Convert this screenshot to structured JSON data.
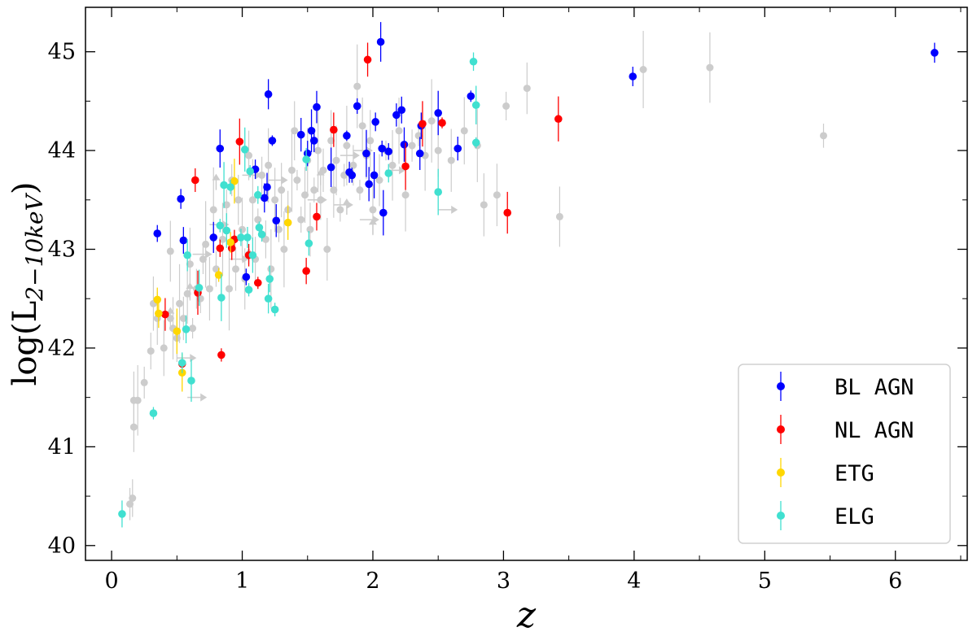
{
  "chart_data": {
    "type": "scatter",
    "xlabel": "z",
    "ylabel": "log(L",
    "ylabel_sub": "2−10keV",
    "ylabel_close": ")",
    "xlim": [
      -0.2,
      6.55
    ],
    "ylim": [
      39.85,
      45.45
    ],
    "x_ticks": [
      0,
      1,
      2,
      3,
      4,
      5,
      6
    ],
    "y_ticks": [
      40,
      41,
      42,
      43,
      44,
      45
    ],
    "grid": false,
    "legend_position": "lower-right",
    "background_points": {
      "color": "#cccccc",
      "points": [
        [
          0.14,
          40.42
        ],
        [
          0.16,
          40.48
        ],
        [
          0.17,
          41.2
        ],
        [
          0.17,
          41.47
        ],
        [
          0.2,
          41.47
        ],
        [
          0.25,
          41.65
        ],
        [
          0.3,
          41.97
        ],
        [
          0.32,
          42.45
        ],
        [
          0.35,
          42.3
        ],
        [
          0.4,
          42.0
        ],
        [
          0.45,
          42.3
        ],
        [
          0.45,
          42.98
        ],
        [
          0.47,
          42.2
        ],
        [
          0.5,
          42.1
        ],
        [
          0.52,
          42.45
        ],
        [
          0.55,
          42.3
        ],
        [
          0.58,
          42.55
        ],
        [
          0.6,
          42.85
        ],
        [
          0.62,
          42.2
        ],
        [
          0.65,
          42.6
        ],
        [
          0.68,
          42.5
        ],
        [
          0.7,
          42.9
        ],
        [
          0.72,
          43.05
        ],
        [
          0.75,
          42.6
        ],
        [
          0.78,
          43.4
        ],
        [
          0.8,
          42.8
        ],
        [
          0.85,
          43.1
        ],
        [
          0.88,
          43.45
        ],
        [
          0.9,
          42.6
        ],
        [
          0.92,
          43.7
        ],
        [
          0.95,
          42.8
        ],
        [
          0.97,
          43.5
        ],
        [
          1.0,
          43.2
        ],
        [
          1.02,
          42.7
        ],
        [
          1.05,
          43.95
        ],
        [
          1.08,
          43.5
        ],
        [
          1.1,
          42.9
        ],
        [
          1.12,
          43.3
        ],
        [
          1.15,
          43.75
        ],
        [
          1.18,
          43.1
        ],
        [
          1.2,
          43.85
        ],
        [
          1.22,
          42.8
        ],
        [
          1.25,
          43.5
        ],
        [
          1.28,
          43.2
        ],
        [
          1.3,
          43.6
        ],
        [
          1.32,
          43.0
        ],
        [
          1.35,
          43.4
        ],
        [
          1.38,
          43.8
        ],
        [
          1.4,
          44.2
        ],
        [
          1.42,
          43.7
        ],
        [
          1.45,
          43.3
        ],
        [
          1.48,
          43.55
        ],
        [
          1.5,
          43.9
        ],
        [
          1.52,
          43.2
        ],
        [
          1.55,
          43.6
        ],
        [
          1.58,
          44.0
        ],
        [
          1.6,
          43.5
        ],
        [
          1.62,
          43.8
        ],
        [
          1.65,
          43.0
        ],
        [
          1.68,
          44.1
        ],
        [
          1.7,
          43.6
        ],
        [
          1.72,
          43.9
        ],
        [
          1.75,
          43.4
        ],
        [
          1.78,
          43.75
        ],
        [
          1.8,
          44.05
        ],
        [
          1.85,
          43.85
        ],
        [
          1.88,
          44.65
        ],
        [
          1.9,
          43.6
        ],
        [
          1.92,
          44.25
        ],
        [
          1.95,
          43.95
        ],
        [
          1.98,
          44.1
        ],
        [
          2.0,
          43.4
        ],
        [
          2.05,
          43.7
        ],
        [
          2.1,
          44.0
        ],
        [
          2.15,
          43.85
        ],
        [
          2.2,
          44.2
        ],
        [
          2.25,
          43.55
        ],
        [
          2.3,
          44.05
        ],
        [
          2.35,
          44.15
        ],
        [
          2.4,
          43.95
        ],
        [
          2.45,
          44.3
        ],
        [
          2.5,
          44.0
        ],
        [
          2.6,
          43.9
        ],
        [
          2.7,
          44.2
        ],
        [
          2.8,
          44.05
        ],
        [
          2.85,
          43.45
        ],
        [
          2.95,
          43.55
        ],
        [
          3.02,
          44.45
        ],
        [
          3.18,
          44.63
        ],
        [
          3.43,
          43.33
        ],
        [
          4.07,
          44.82
        ],
        [
          4.58,
          44.84
        ],
        [
          5.45,
          44.15
        ]
      ],
      "arrows": [
        [
          0.45,
          42.25
        ],
        [
          0.5,
          41.9
        ],
        [
          0.58,
          41.5
        ],
        [
          0.6,
          42.5
        ],
        [
          0.62,
          42.95
        ],
        [
          0.75,
          43.25
        ],
        [
          0.8,
          43.6
        ],
        [
          0.9,
          42.9
        ],
        [
          1.0,
          43.75
        ],
        [
          1.05,
          42.85
        ],
        [
          1.2,
          43.7
        ],
        [
          1.5,
          43.5
        ],
        [
          1.6,
          43.65
        ],
        [
          1.7,
          43.45
        ],
        [
          1.75,
          43.95
        ],
        [
          1.8,
          43.35
        ],
        [
          1.85,
          44.0
        ],
        [
          1.9,
          43.3
        ],
        [
          2.0,
          43.15
        ],
        [
          2.1,
          43.8
        ],
        [
          2.5,
          43.4
        ]
      ]
    },
    "series": [
      {
        "name": "BL AGN",
        "color": "#0000ff",
        "points": [
          [
            0.35,
            43.16
          ],
          [
            0.53,
            43.51
          ],
          [
            0.55,
            43.09
          ],
          [
            0.78,
            43.12
          ],
          [
            0.83,
            44.02
          ],
          [
            1.03,
            42.72
          ],
          [
            1.1,
            43.81
          ],
          [
            1.17,
            43.52
          ],
          [
            1.19,
            43.63
          ],
          [
            1.2,
            44.57
          ],
          [
            1.23,
            44.1
          ],
          [
            1.26,
            43.29
          ],
          [
            1.45,
            44.16
          ],
          [
            1.5,
            43.97
          ],
          [
            1.53,
            44.2
          ],
          [
            1.55,
            44.1
          ],
          [
            1.57,
            44.44
          ],
          [
            1.68,
            43.83
          ],
          [
            1.8,
            44.15
          ],
          [
            1.82,
            43.78
          ],
          [
            1.84,
            43.75
          ],
          [
            1.88,
            44.45
          ],
          [
            1.95,
            43.97
          ],
          [
            1.97,
            43.66
          ],
          [
            2.01,
            43.75
          ],
          [
            2.02,
            44.29
          ],
          [
            2.06,
            45.1
          ],
          [
            2.07,
            44.02
          ],
          [
            2.08,
            43.37
          ],
          [
            2.12,
            43.99
          ],
          [
            2.18,
            44.36
          ],
          [
            2.22,
            44.41
          ],
          [
            2.24,
            44.06
          ],
          [
            2.36,
            43.97
          ],
          [
            2.37,
            44.25
          ],
          [
            2.5,
            44.38
          ],
          [
            2.65,
            44.02
          ],
          [
            2.75,
            44.55
          ],
          [
            3.99,
            44.75
          ],
          [
            6.3,
            44.99
          ]
        ]
      },
      {
        "name": "NL AGN",
        "color": "#ff0000",
        "points": [
          [
            0.41,
            42.34
          ],
          [
            0.54,
            41.84
          ],
          [
            0.64,
            43.7
          ],
          [
            0.66,
            42.56
          ],
          [
            0.83,
            43.01
          ],
          [
            0.84,
            41.93
          ],
          [
            0.92,
            43.01
          ],
          [
            0.94,
            43.1
          ],
          [
            0.98,
            44.09
          ],
          [
            1.05,
            42.94
          ],
          [
            1.12,
            42.66
          ],
          [
            1.49,
            42.78
          ],
          [
            1.57,
            43.33
          ],
          [
            1.7,
            44.21
          ],
          [
            1.96,
            44.92
          ],
          [
            2.25,
            43.84
          ],
          [
            2.38,
            44.27
          ],
          [
            2.53,
            44.28
          ],
          [
            3.03,
            43.37
          ],
          [
            3.42,
            44.32
          ]
        ]
      },
      {
        "name": "ETG",
        "color": "#ffd700",
        "points": [
          [
            0.35,
            42.49
          ],
          [
            0.36,
            42.35
          ],
          [
            0.5,
            42.17
          ],
          [
            0.54,
            41.75
          ],
          [
            0.82,
            42.74
          ],
          [
            0.91,
            43.07
          ],
          [
            0.94,
            43.69
          ],
          [
            1.35,
            43.27
          ]
        ]
      },
      {
        "name": "ELG",
        "color": "#40e0d0",
        "points": [
          [
            0.08,
            40.32
          ],
          [
            0.32,
            41.34
          ],
          [
            0.54,
            41.85
          ],
          [
            0.57,
            42.19
          ],
          [
            0.58,
            42.94
          ],
          [
            0.61,
            41.67
          ],
          [
            0.67,
            42.61
          ],
          [
            0.83,
            43.24
          ],
          [
            0.84,
            42.51
          ],
          [
            0.86,
            43.65
          ],
          [
            0.88,
            43.19
          ],
          [
            0.91,
            43.63
          ],
          [
            0.99,
            43.12
          ],
          [
            1.02,
            44.01
          ],
          [
            1.04,
            43.12
          ],
          [
            1.05,
            42.59
          ],
          [
            1.06,
            43.79
          ],
          [
            1.08,
            42.94
          ],
          [
            1.12,
            43.55
          ],
          [
            1.13,
            43.22
          ],
          [
            1.15,
            43.15
          ],
          [
            1.2,
            42.5
          ],
          [
            1.21,
            42.7
          ],
          [
            1.25,
            42.39
          ],
          [
            1.49,
            43.91
          ],
          [
            1.51,
            43.06
          ],
          [
            2.12,
            43.77
          ],
          [
            2.5,
            43.58
          ],
          [
            2.77,
            44.9
          ],
          [
            2.79,
            44.08
          ],
          [
            2.79,
            44.46
          ]
        ]
      }
    ]
  }
}
